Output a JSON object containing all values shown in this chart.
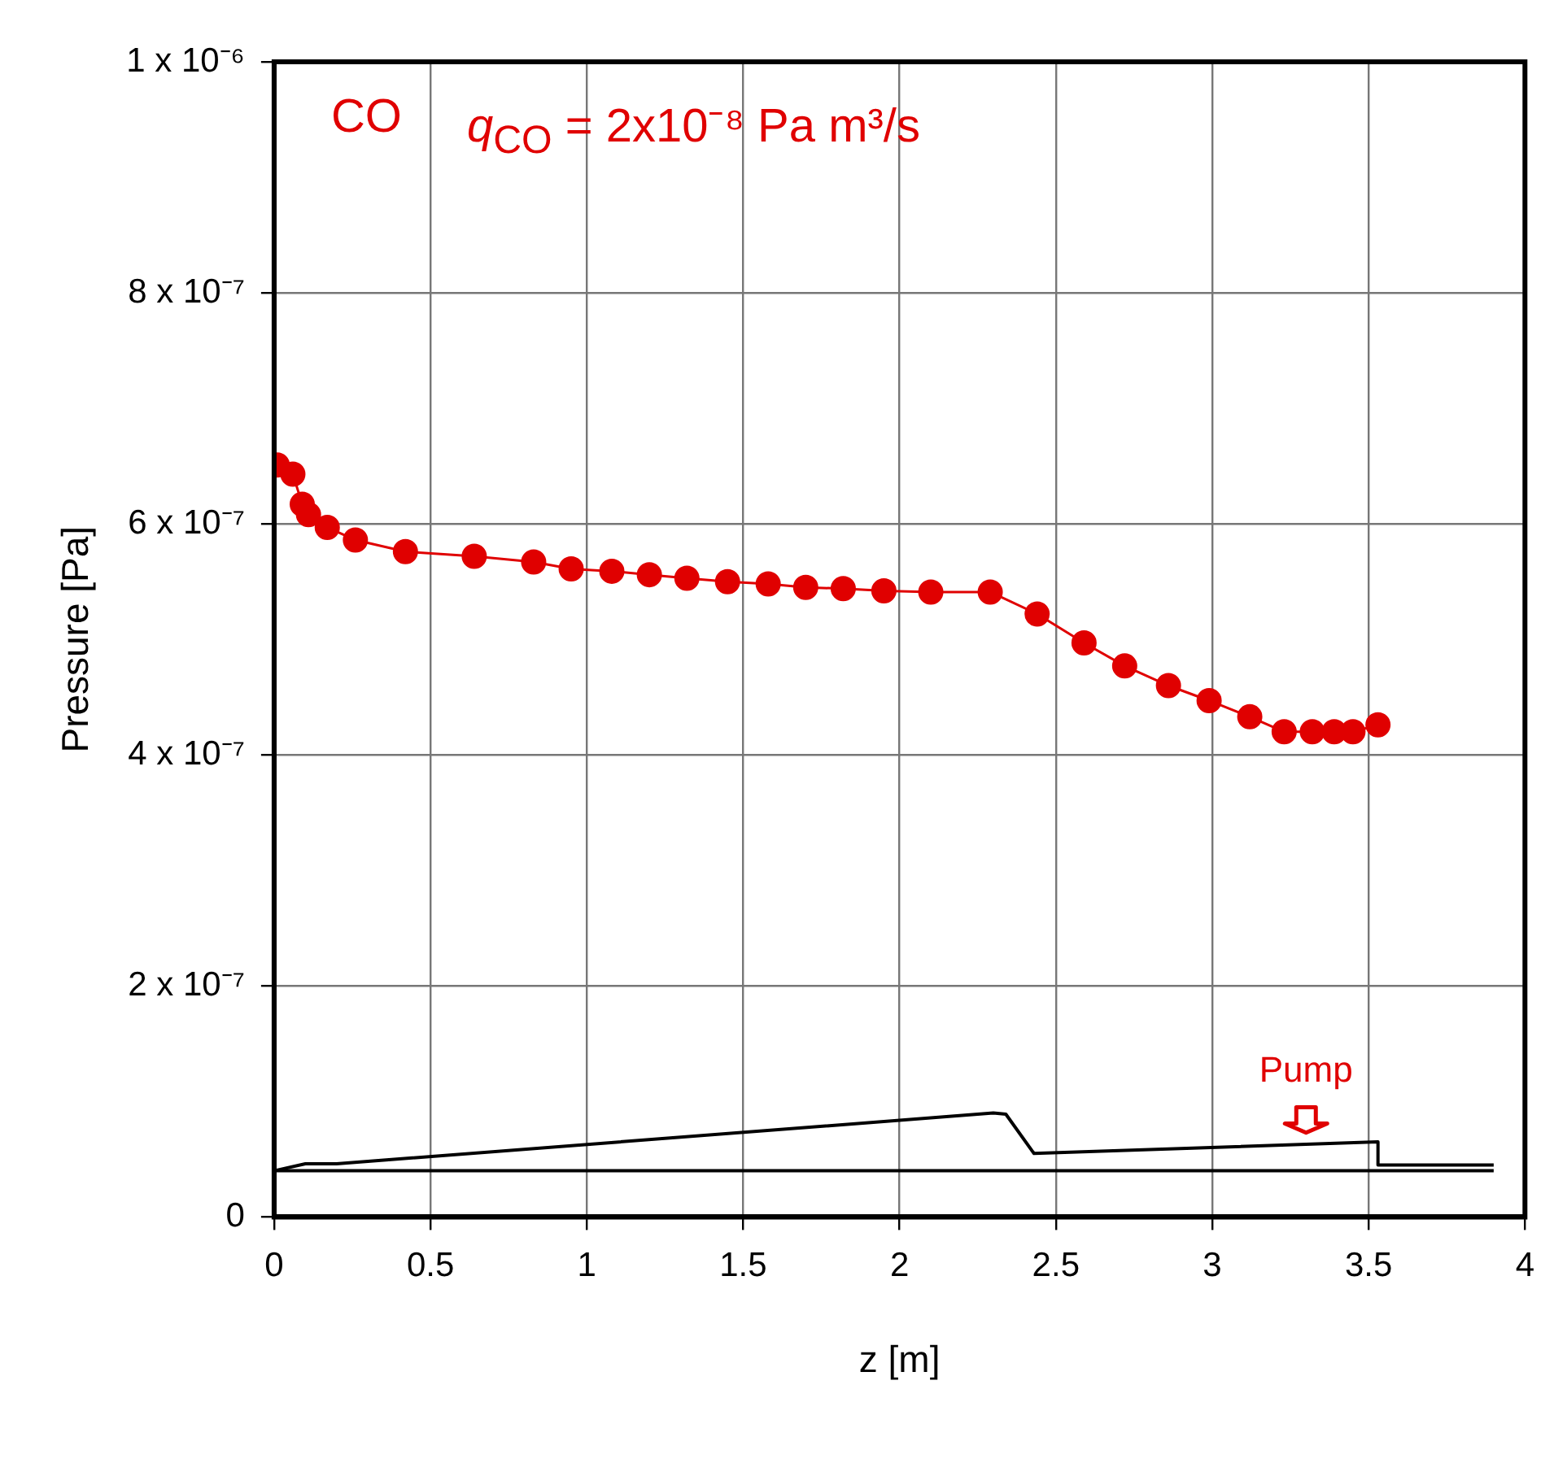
{
  "chart_data": {
    "type": "line",
    "xlabel": "z [m]",
    "ylabel": "Pressure [Pa]",
    "annotations": [
      "CO",
      "q$_{CO}$ = 2x10⁻⁸ Pa m³/s",
      "Pump"
    ],
    "series": [
      {
        "color": "#e00000",
        "x": [
          0.01,
          0.06,
          0.09,
          0.11,
          0.17,
          0.26,
          0.42,
          0.64,
          0.83,
          0.95,
          1.08,
          1.2,
          1.32,
          1.45,
          1.58,
          1.7,
          1.82,
          1.95,
          2.1,
          2.29,
          2.44,
          2.59,
          2.72,
          2.86,
          2.99,
          3.12,
          3.23,
          3.32,
          3.39,
          3.45,
          3.53
        ],
        "values": [
          6.51e-07,
          6.43e-07,
          6.17e-07,
          6.08e-07,
          5.97e-07,
          5.86e-07,
          5.76e-07,
          5.72e-07,
          5.67e-07,
          5.61e-07,
          5.59e-07,
          5.56e-07,
          5.53e-07,
          5.5e-07,
          5.48e-07,
          5.45e-07,
          5.44e-07,
          5.42e-07,
          5.41e-07,
          5.41e-07,
          5.22e-07,
          4.97e-07,
          4.77e-07,
          4.6e-07,
          4.47e-07,
          4.33e-07,
          4.2e-07,
          4.2e-07,
          4.2e-07,
          4.2e-07,
          4.26e-07
        ]
      },
      {
        "color": "#000000",
        "marker": "none",
        "x": [
          0,
          0.1,
          0.2,
          2.3,
          2.34,
          2.43,
          3.53,
          3.53,
          3.9
        ],
        "values": [
          4e-08,
          4.6e-08,
          4.6e-08,
          9e-08,
          8.9e-08,
          5.5e-08,
          6.5e-08,
          4.5e-08,
          4.5e-08
        ]
      },
      {
        "color": "#000000",
        "marker": "none",
        "x": [
          0,
          3.9
        ],
        "values": [
          4e-08,
          4e-08
        ]
      }
    ],
    "xlim": [
      0,
      4
    ],
    "xticks": [
      0,
      0.5,
      1,
      1.5,
      2,
      2.5,
      3,
      3.5,
      4
    ],
    "ylim": [
      0,
      1e-06
    ],
    "yticks": [
      0,
      {
        "value": 2e-07,
        "label": "2 x 10⁻⁷"
      },
      {
        "value": 4e-07,
        "label": "4 x 10⁻⁷"
      },
      {
        "value": 6e-07,
        "label": "6 x 10⁻⁷"
      },
      {
        "value": 8e-07,
        "label": "8 x 10⁻⁷"
      },
      {
        "value": 1e-06,
        "label": "1 x 10⁻⁶"
      }
    ],
    "grid": true,
    "legend": false,
    "marker": "circle",
    "line_style": "solid"
  }
}
